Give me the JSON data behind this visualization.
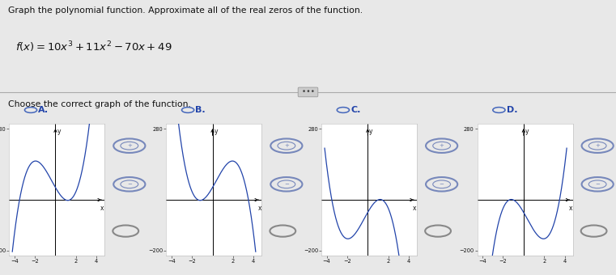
{
  "title": "Graph the polynomial function. Approximate all of the real zeros of the function.",
  "formula_text": "f(x) = 10x³ + 11x² − 70x + 49",
  "choose_text": "Choose the correct graph of the function.",
  "labels": [
    "A.",
    "B.",
    "C.",
    "D."
  ],
  "coeffs_A": [
    10,
    11,
    -70,
    49
  ],
  "coeffs_B": [
    -10,
    11,
    70,
    49
  ],
  "coeffs_C": [
    -10,
    -11,
    70,
    -49
  ],
  "coeffs_D": [
    10,
    -11,
    -70,
    -49
  ],
  "xlim": [
    -4.5,
    4.8
  ],
  "ylim": [
    -220,
    300
  ],
  "xticks": [
    -4,
    -2,
    2,
    4
  ],
  "ytick_top": 280,
  "ytick_bot": -200,
  "bg_color": "#d8d8d8",
  "panel_bg": "#e8e8e8",
  "white": "#ffffff",
  "curve_color": "#2244aa",
  "axis_color": "#000000",
  "text_color": "#111111",
  "radio_color": "#4466bb",
  "label_color": "#2244aa",
  "divider_color": "#aaaaaa",
  "dots_bg": "#cccccc"
}
